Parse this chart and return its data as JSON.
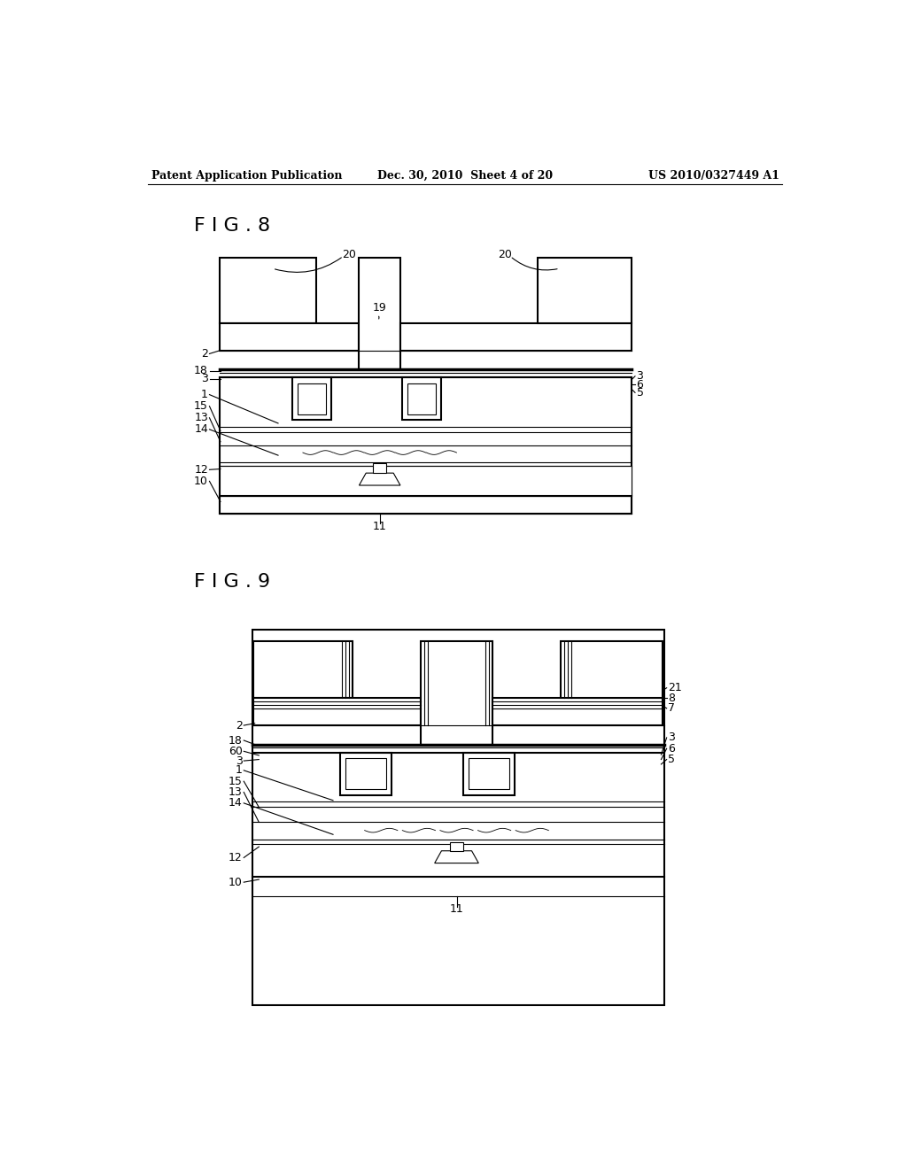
{
  "bg_color": "#ffffff",
  "line_color": "#000000",
  "header_left": "Patent Application Publication",
  "header_center": "Dec. 30, 2010  Sheet 4 of 20",
  "header_right": "US 2010/0327449 A1",
  "fig8_label": "F I G . 8",
  "fig9_label": "F I G . 9"
}
